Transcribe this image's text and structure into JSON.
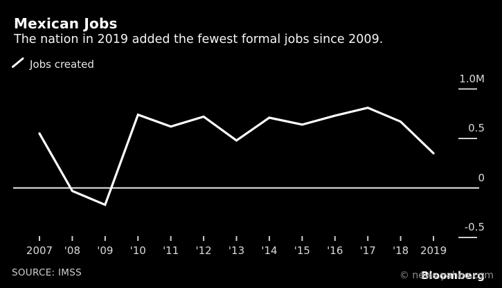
{
  "header": {
    "title": "Mexican Jobs",
    "subtitle": "The nation in 2019 added the fewest formal jobs since 2009."
  },
  "legend": {
    "label": "Jobs created"
  },
  "source_text": "SOURCE: IMSS",
  "watermark": {
    "site": "© news.yahoo.com",
    "brand": "Bloomberg"
  },
  "colors": {
    "background": "#000000",
    "line": "#ffffff",
    "zero_line": "#ededed",
    "tick": "#cfcfcf",
    "axis_text": "#d9d9d9",
    "title_text": "#ffffff",
    "watermark_site": "#8f8f8f"
  },
  "chart_data": {
    "type": "line",
    "title": "Mexican Jobs",
    "subtitle": "The nation in 2019 added the fewest formal jobs since 2009.",
    "unit": "millions of jobs",
    "categories": [
      "2007",
      "'08",
      "'09",
      "'10",
      "'11",
      "'12",
      "'13",
      "'14",
      "'15",
      "'16",
      "'17",
      "'18",
      "2019"
    ],
    "x": [
      2007,
      2008,
      2009,
      2010,
      2011,
      2012,
      2013,
      2014,
      2015,
      2016,
      2017,
      2018,
      2019
    ],
    "series": [
      {
        "name": "Jobs created",
        "values": [
          0.55,
          -0.03,
          -0.17,
          0.74,
          0.62,
          0.72,
          0.48,
          0.71,
          0.64,
          0.73,
          0.81,
          0.67,
          0.35
        ]
      }
    ],
    "yticks": [
      {
        "label": "1.0M",
        "value": 1.0
      },
      {
        "label": "0.5",
        "value": 0.5
      },
      {
        "label": "0",
        "value": 0.0
      },
      {
        "label": "-0.5",
        "value": -0.5
      }
    ],
    "ylim": [
      -0.62,
      1.06
    ],
    "grid": false,
    "legend_position": "top-left",
    "axis_side": "right"
  }
}
